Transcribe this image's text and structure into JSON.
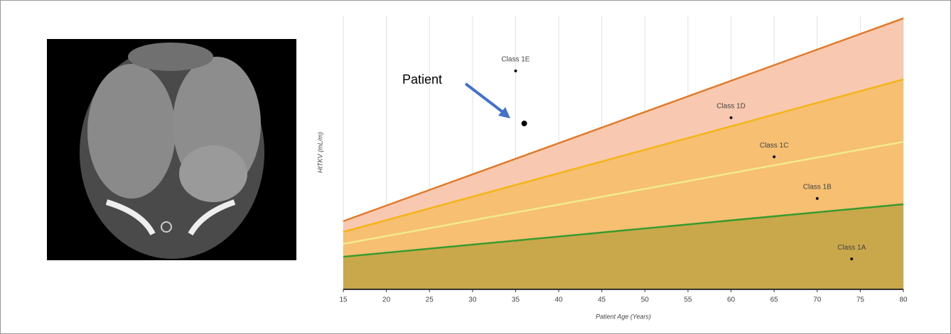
{
  "chart_data": {
    "type": "area",
    "x_label": "Patient Age (Years)",
    "y_label": "HtTKV (mL/m)",
    "xlim": [
      15,
      80
    ],
    "xticks": [
      15,
      20,
      25,
      30,
      35,
      40,
      45,
      50,
      55,
      60,
      65,
      70,
      75,
      80
    ],
    "ylim": [
      0,
      100
    ],
    "grid": true,
    "x": [
      15,
      80
    ],
    "series": [
      {
        "color": "#3a9a2e",
        "fill": "#c9a84b",
        "values": [
          11.9,
          31.1
        ]
      },
      {
        "color": "#f2ea90",
        "fill": "#f6bf72",
        "values": [
          16.6,
          53.9
        ]
      },
      {
        "color": "#f5b417",
        "fill": "#f6bf72",
        "values": [
          21.0,
          76.7
        ]
      },
      {
        "color": "#e07b2e",
        "fill": "#f8c9b0",
        "values": [
          24.9,
          99.0
        ]
      }
    ],
    "points": [
      {
        "label": "Class 1E",
        "x": 35,
        "y": 79.8
      },
      {
        "label": "Class 1D",
        "x": 60,
        "y": 62.7
      },
      {
        "label": "Class 1C",
        "x": 65,
        "y": 48.4
      },
      {
        "label": "Class 1B",
        "x": 70,
        "y": 33.2
      },
      {
        "label": "Class 1A",
        "x": 74,
        "y": 11.1
      }
    ],
    "patient": {
      "label": "Patient",
      "x": 36,
      "y": 60.6
    }
  }
}
